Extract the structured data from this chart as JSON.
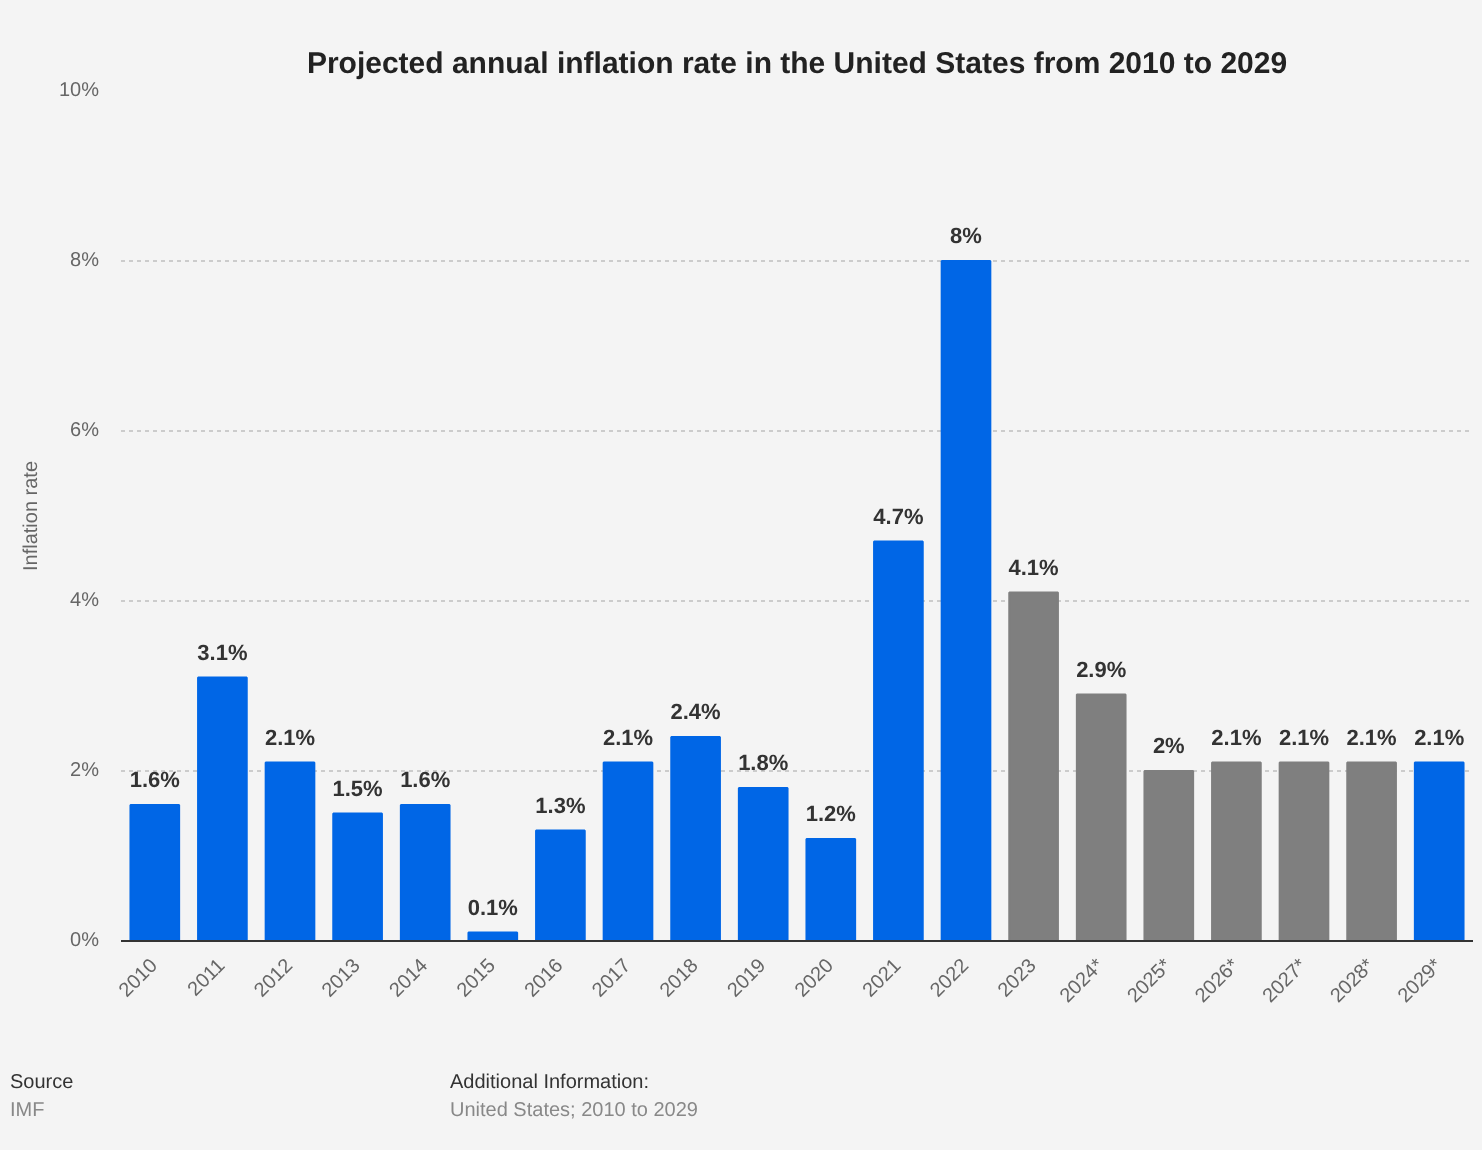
{
  "chart_data": {
    "type": "bar",
    "title": "Projected annual inflation rate in the United States from 2010 to 2029",
    "ylabel": "Inflation rate",
    "categories": [
      "2010",
      "2011",
      "2012",
      "2013",
      "2014",
      "2015",
      "2016",
      "2017",
      "2018",
      "2019",
      "2020",
      "2021",
      "2022",
      "2023",
      "2024*",
      "2025*",
      "2026*",
      "2027*",
      "2028*",
      "2029*"
    ],
    "values": [
      1.6,
      3.1,
      2.1,
      1.5,
      1.6,
      0.1,
      1.3,
      2.1,
      2.4,
      1.8,
      1.2,
      4.7,
      8,
      4.1,
      2.9,
      2,
      2.1,
      2.1,
      2.1,
      2.1
    ],
    "colors": [
      "#0066e6",
      "#0066e6",
      "#0066e6",
      "#0066e6",
      "#0066e6",
      "#0066e6",
      "#0066e6",
      "#0066e6",
      "#0066e6",
      "#0066e6",
      "#0066e6",
      "#0066e6",
      "#0066e6",
      "#7f7f7f",
      "#7f7f7f",
      "#7f7f7f",
      "#7f7f7f",
      "#7f7f7f",
      "#7f7f7f",
      "#0066e6"
    ],
    "value_labels": [
      "1.6%",
      "3.1%",
      "2.1%",
      "1.5%",
      "1.6%",
      "0.1%",
      "1.3%",
      "2.1%",
      "2.4%",
      "1.8%",
      "1.2%",
      "4.7%",
      "8%",
      "4.1%",
      "2.9%",
      "2%",
      "2.1%",
      "2.1%",
      "2.1%",
      "2.1%"
    ],
    "ylim": [
      0,
      10
    ],
    "yticks": [
      {
        "value": 0,
        "label": "0%"
      },
      {
        "value": 2,
        "label": "2%"
      },
      {
        "value": 4,
        "label": "4%"
      },
      {
        "value": 6,
        "label": "6%"
      },
      {
        "value": 8,
        "label": "8%"
      },
      {
        "value": 10,
        "label": "10%"
      }
    ],
    "grid": "y",
    "annotations": [
      "Source",
      "IMF",
      "Additional Information:",
      "United States; 2010 to 2029"
    ]
  }
}
